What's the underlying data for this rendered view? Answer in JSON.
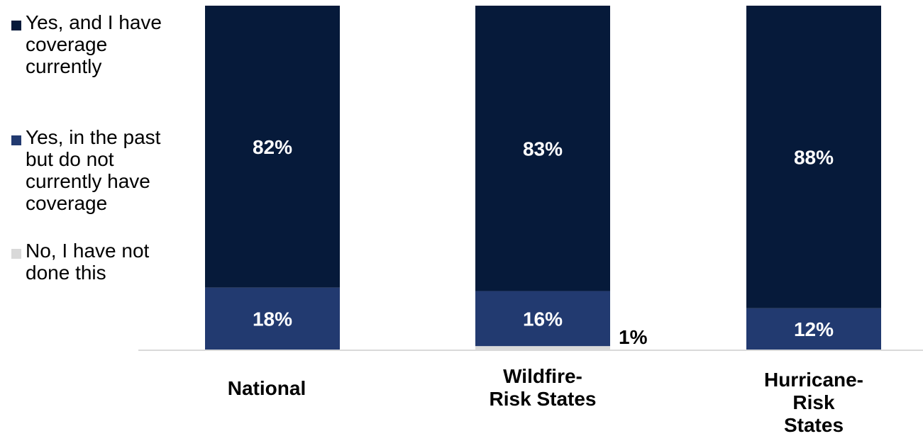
{
  "chart_data": {
    "type": "bar",
    "stacked": true,
    "categories": [
      [
        "National"
      ],
      [
        "Wildfire-",
        "Risk States"
      ],
      [
        "Hurricane-",
        "Risk",
        "States"
      ]
    ],
    "series": [
      {
        "name": "No, I have not done this",
        "color": "#d9d9d9",
        "values": [
          0,
          1,
          0
        ],
        "labels": [
          "",
          "1%",
          ""
        ]
      },
      {
        "name": "Yes, in the past but do not currently have coverage",
        "color": "#223a70",
        "values": [
          18,
          16,
          12
        ],
        "labels": [
          "18%",
          "16%",
          "12%"
        ]
      },
      {
        "name": "Yes, and I have coverage currently",
        "color": "#061a3a",
        "values": [
          82,
          83,
          88
        ],
        "labels": [
          "82%",
          "83%",
          "88%"
        ]
      }
    ],
    "ylim": [
      0,
      100
    ],
    "grid": false,
    "legend_position": "left"
  },
  "legend": {
    "items": [
      {
        "label_lines": [
          "Yes, and I have",
          "coverage",
          "currently"
        ],
        "color": "#061a3a"
      },
      {
        "label_lines": [
          "Yes, in the past",
          "but do not",
          "currently have",
          "coverage"
        ],
        "color": "#223a70"
      },
      {
        "label_lines": [
          "No, I have not",
          "done this"
        ],
        "color": "#d9d9d9"
      }
    ]
  }
}
